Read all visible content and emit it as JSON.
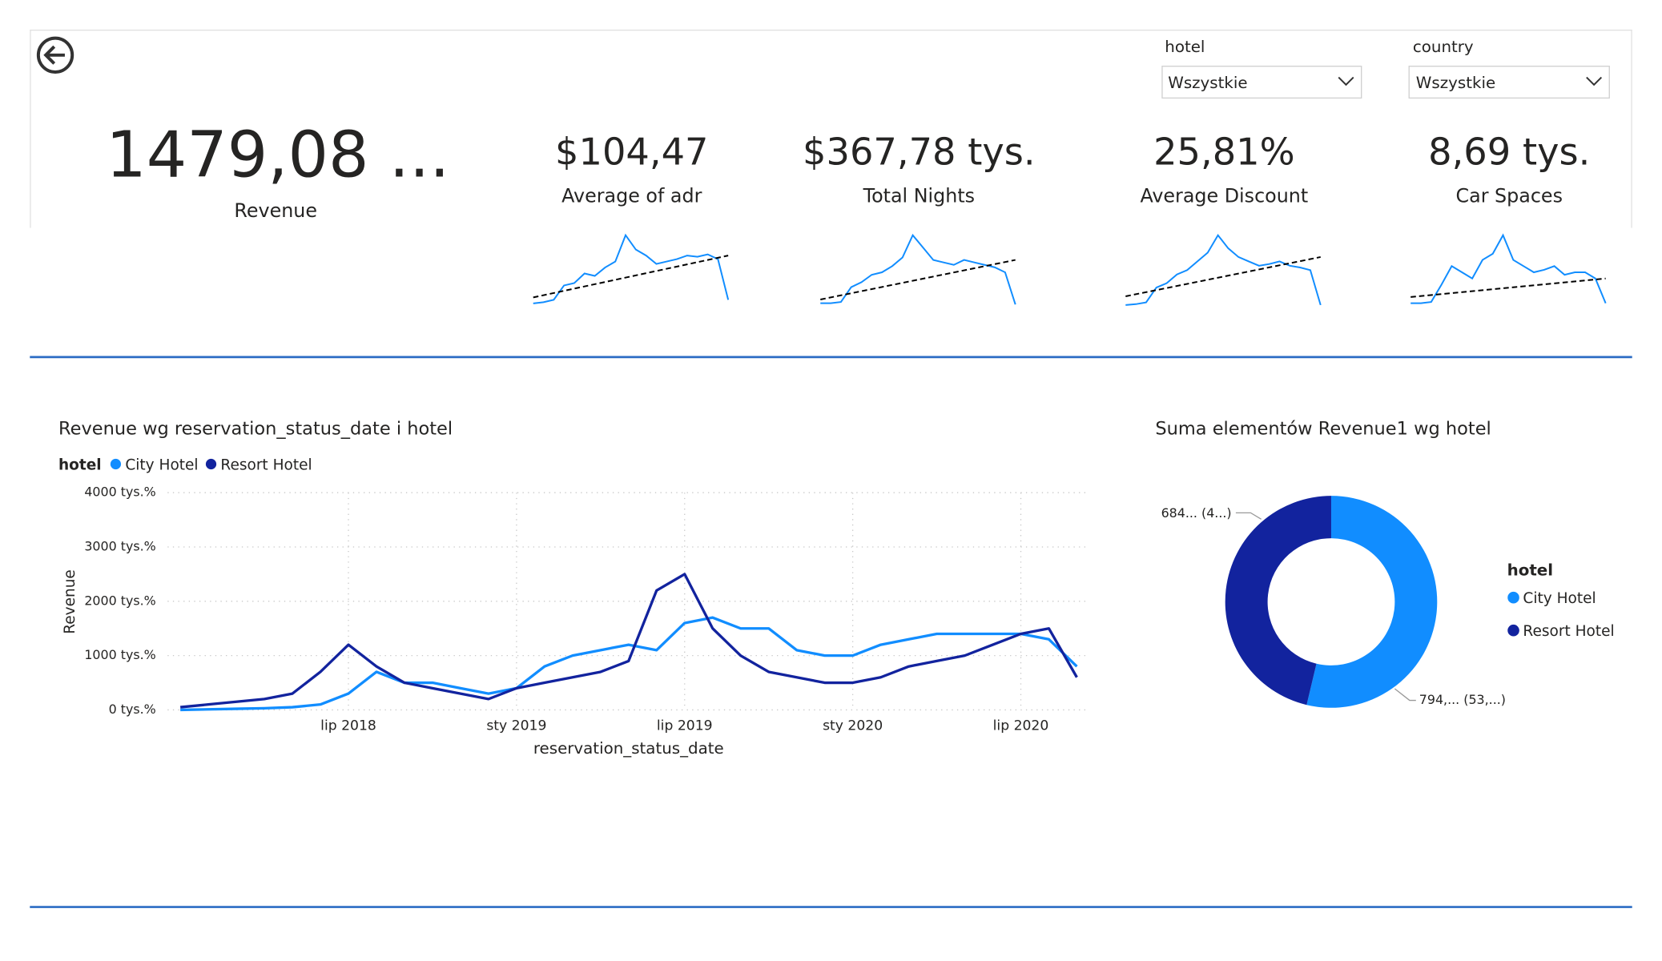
{
  "filters": [
    {
      "label": "hotel",
      "value": "Wszystkie"
    },
    {
      "label": "country",
      "value": "Wszystkie"
    }
  ],
  "kpis": [
    {
      "value": "1479,08 ...",
      "label": "Revenue"
    },
    {
      "value": "$104,47",
      "label": "Average of adr",
      "sparkline": {
        "values": [
          5,
          6,
          8,
          20,
          22,
          30,
          28,
          35,
          40,
          62,
          50,
          45,
          38,
          40,
          42,
          45,
          44,
          46,
          42,
          8
        ],
        "trend": [
          10,
          45
        ]
      }
    },
    {
      "value": "$367,78 tys.",
      "label": "Total Nights",
      "sparkline": {
        "values": [
          5,
          5,
          6,
          18,
          22,
          28,
          30,
          35,
          42,
          60,
          50,
          40,
          38,
          36,
          40,
          38,
          36,
          34,
          30,
          4
        ],
        "trend": [
          8,
          40
        ]
      }
    },
    {
      "value": "25,81%",
      "label": "Average Discount",
      "sparkline": {
        "values": [
          5,
          6,
          8,
          25,
          30,
          40,
          45,
          55,
          65,
          85,
          70,
          60,
          55,
          50,
          52,
          55,
          50,
          48,
          45,
          5
        ],
        "trend": [
          15,
          60
        ]
      }
    },
    {
      "value": "8,69 tys.",
      "label": "Car Spaces",
      "sparkline": {
        "values": [
          5,
          5,
          6,
          20,
          35,
          30,
          25,
          40,
          45,
          60,
          40,
          35,
          30,
          32,
          35,
          28,
          30,
          30,
          25,
          5
        ],
        "trend": [
          10,
          25
        ]
      }
    }
  ],
  "chart_data": [
    {
      "type": "line",
      "title": "Revenue wg reservation_status_date i hotel",
      "legend_title": "hotel",
      "x_label": "reservation_status_date",
      "y_label": "Revenue",
      "x": [
        "2018-01",
        "2018-02",
        "2018-03",
        "2018-04",
        "2018-05",
        "2018-06",
        "2018-07",
        "2018-08",
        "2018-09",
        "2018-10",
        "2018-11",
        "2018-12",
        "2019-01",
        "2019-02",
        "2019-03",
        "2019-04",
        "2019-05",
        "2019-06",
        "2019-07",
        "2019-08",
        "2019-09",
        "2019-10",
        "2019-11",
        "2019-12",
        "2020-01",
        "2020-02",
        "2020-03",
        "2020-04",
        "2020-05",
        "2020-06",
        "2020-07",
        "2020-08",
        "2020-09"
      ],
      "xlim": [
        "2018-01",
        "2020-09"
      ],
      "xticks": [
        {
          "value": "2018-07",
          "label": "lip 2018"
        },
        {
          "value": "2019-01",
          "label": "sty 2019"
        },
        {
          "value": "2019-07",
          "label": "lip 2019"
        },
        {
          "value": "2020-01",
          "label": "sty 2020"
        },
        {
          "value": "2020-07",
          "label": "lip 2020"
        }
      ],
      "ylim": [
        0,
        4000
      ],
      "yticks": [
        {
          "value": 0,
          "label": "0 tys.%"
        },
        {
          "value": 1000,
          "label": "1000 tys.%"
        },
        {
          "value": 2000,
          "label": "2000 tys.%"
        },
        {
          "value": 3000,
          "label": "3000 tys.%"
        },
        {
          "value": 4000,
          "label": "4000 tys.%"
        }
      ],
      "grid": true,
      "series": [
        {
          "name": "City Hotel",
          "color": "#118dff",
          "values": [
            0,
            10,
            20,
            30,
            50,
            100,
            300,
            700,
            500,
            500,
            400,
            300,
            400,
            800,
            1000,
            1100,
            1200,
            1100,
            1600,
            1700,
            1500,
            1500,
            1100,
            1000,
            1000,
            1200,
            1300,
            1400,
            1400,
            1400,
            1400,
            1300,
            800
          ]
        },
        {
          "name": "Resort Hotel",
          "color": "#12239e",
          "values": [
            50,
            100,
            150,
            200,
            300,
            700,
            1200,
            800,
            500,
            400,
            300,
            200,
            400,
            500,
            600,
            700,
            900,
            2200,
            2500,
            1500,
            1000,
            700,
            600,
            500,
            500,
            600,
            800,
            900,
            1000,
            1200,
            1400,
            1500,
            600
          ]
        }
      ]
    },
    {
      "type": "donut",
      "title": "Suma elementów Revenue1 wg hotel",
      "legend_title": "hotel",
      "categories": [
        "City Hotel",
        "Resort Hotel"
      ],
      "colors": [
        "#118dff",
        "#12239e"
      ],
      "values": [
        794,
        684
      ],
      "value_labels": [
        "794,... (53,...)",
        "684... (4...)"
      ]
    }
  ]
}
